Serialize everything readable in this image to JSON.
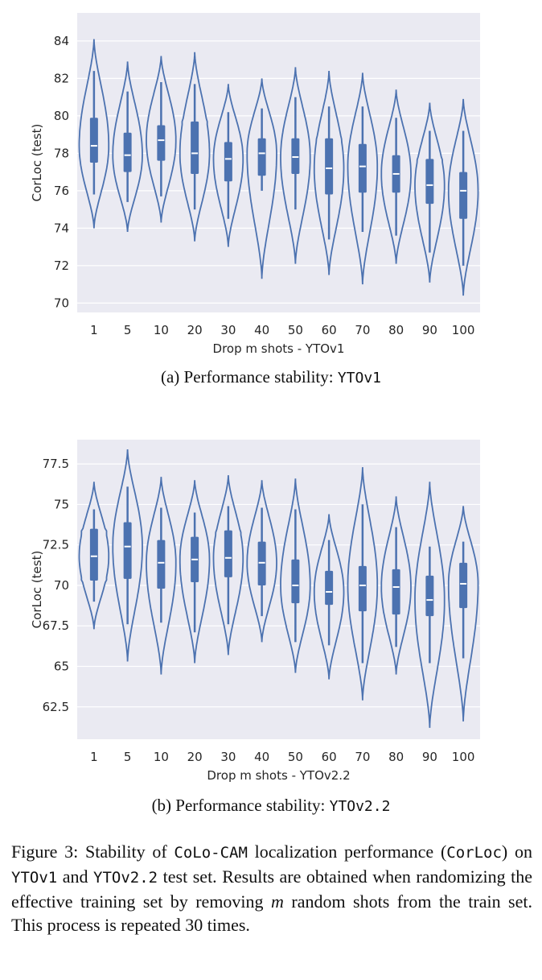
{
  "chart_data": [
    {
      "type": "violin",
      "categories": [
        "1",
        "5",
        "10",
        "20",
        "30",
        "40",
        "50",
        "60",
        "70",
        "80",
        "90",
        "100"
      ],
      "ylabel": "CorLoc (test)",
      "xlabel": "Drop m shots - YTOv1",
      "ylim": [
        69.5,
        85.5
      ],
      "yticks": [
        70,
        72,
        74,
        76,
        78,
        80,
        82,
        84
      ],
      "grid": true,
      "color": "#4c72b0",
      "background": "#eaeaf2",
      "series": [
        {
          "min": 74.0,
          "q1": 77.5,
          "median": 78.4,
          "q3": 79.9,
          "max": 84.1,
          "wlo": 75.8,
          "whi": 82.4
        },
        {
          "min": 73.8,
          "q1": 77.0,
          "median": 77.9,
          "q3": 79.1,
          "max": 82.9,
          "wlo": 75.4,
          "whi": 81.3
        },
        {
          "min": 74.3,
          "q1": 77.6,
          "median": 78.7,
          "q3": 79.5,
          "max": 83.2,
          "wlo": 75.7,
          "whi": 81.8
        },
        {
          "min": 73.3,
          "q1": 76.9,
          "median": 78.0,
          "q3": 79.7,
          "max": 83.4,
          "wlo": 75.0,
          "whi": 81.7
        },
        {
          "min": 73.0,
          "q1": 76.5,
          "median": 77.7,
          "q3": 78.6,
          "max": 81.7,
          "wlo": 74.5,
          "whi": 80.2
        },
        {
          "min": 71.3,
          "q1": 76.8,
          "median": 78.0,
          "q3": 78.8,
          "max": 82.0,
          "wlo": 76.0,
          "whi": 80.4
        },
        {
          "min": 72.1,
          "q1": 76.9,
          "median": 77.8,
          "q3": 78.8,
          "max": 82.6,
          "wlo": 75.0,
          "whi": 81.0
        },
        {
          "min": 71.5,
          "q1": 75.8,
          "median": 77.2,
          "q3": 78.8,
          "max": 82.4,
          "wlo": 73.4,
          "whi": 80.5
        },
        {
          "min": 71.0,
          "q1": 75.9,
          "median": 77.3,
          "q3": 78.5,
          "max": 82.3,
          "wlo": 73.8,
          "whi": 80.5
        },
        {
          "min": 72.1,
          "q1": 75.9,
          "median": 76.9,
          "q3": 77.9,
          "max": 81.4,
          "wlo": 73.6,
          "whi": 79.9
        },
        {
          "min": 71.1,
          "q1": 75.3,
          "median": 76.3,
          "q3": 77.7,
          "max": 80.7,
          "wlo": 72.7,
          "whi": 79.2
        },
        {
          "min": 70.4,
          "q1": 74.5,
          "median": 76.0,
          "q3": 77.0,
          "max": 80.9,
          "wlo": 72.0,
          "whi": 79.2
        }
      ]
    },
    {
      "type": "violin",
      "categories": [
        "1",
        "5",
        "10",
        "20",
        "30",
        "40",
        "50",
        "60",
        "70",
        "80",
        "90",
        "100"
      ],
      "ylabel": "CorLoc (test)",
      "xlabel": "Drop m shots - YTOv2.2",
      "ylim": [
        60.5,
        79.0
      ],
      "yticks": [
        62.5,
        65.0,
        67.5,
        70.0,
        72.5,
        75.0,
        77.5
      ],
      "grid": true,
      "color": "#4c72b0",
      "background": "#eaeaf2",
      "series": [
        {
          "min": 67.3,
          "q1": 70.3,
          "median": 71.8,
          "q3": 73.5,
          "max": 76.4,
          "wlo": 69.0,
          "whi": 74.7
        },
        {
          "min": 65.3,
          "q1": 70.4,
          "median": 72.4,
          "q3": 73.9,
          "max": 78.4,
          "wlo": 67.6,
          "whi": 76.1
        },
        {
          "min": 64.5,
          "q1": 69.8,
          "median": 71.4,
          "q3": 72.8,
          "max": 76.7,
          "wlo": 67.7,
          "whi": 74.8
        },
        {
          "min": 65.2,
          "q1": 70.2,
          "median": 71.6,
          "q3": 73.0,
          "max": 76.5,
          "wlo": 67.1,
          "whi": 74.5
        },
        {
          "min": 65.7,
          "q1": 70.5,
          "median": 71.7,
          "q3": 73.4,
          "max": 76.8,
          "wlo": 67.6,
          "whi": 74.9
        },
        {
          "min": 66.5,
          "q1": 70.0,
          "median": 71.4,
          "q3": 72.7,
          "max": 76.5,
          "wlo": 68.1,
          "whi": 74.8
        },
        {
          "min": 64.6,
          "q1": 68.9,
          "median": 70.0,
          "q3": 71.6,
          "max": 76.6,
          "wlo": 66.5,
          "whi": 74.7
        },
        {
          "min": 64.2,
          "q1": 68.8,
          "median": 69.6,
          "q3": 70.9,
          "max": 74.4,
          "wlo": 66.3,
          "whi": 72.8
        },
        {
          "min": 62.9,
          "q1": 68.4,
          "median": 70.0,
          "q3": 71.2,
          "max": 77.3,
          "wlo": 65.2,
          "whi": 75.0
        },
        {
          "min": 64.5,
          "q1": 68.2,
          "median": 69.9,
          "q3": 71.0,
          "max": 75.5,
          "wlo": 66.2,
          "whi": 73.6
        },
        {
          "min": 61.2,
          "q1": 68.1,
          "median": 69.1,
          "q3": 70.6,
          "max": 76.4,
          "wlo": 65.2,
          "whi": 72.4
        },
        {
          "min": 61.6,
          "q1": 68.6,
          "median": 70.1,
          "q3": 71.4,
          "max": 74.9,
          "wlo": 65.5,
          "whi": 72.7
        }
      ]
    }
  ],
  "captions": {
    "a_prefix": "(a) Performance stability: ",
    "a_code": "YTOv1",
    "b_prefix": "(b) Performance stability: ",
    "b_code": "YTOv2.2"
  },
  "figure_caption": {
    "p1": "Figure 3: Stability of ",
    "method": "CoLo-CAM",
    "p2": " localization performance (",
    "metric": "CorLoc",
    "p3": ") on ",
    "ds1": "YTOv1",
    "p4": " and ",
    "ds2": "YTOv2.2",
    "p5": " test set. Results are obtained when randomizing the effective training set by removing ",
    "var": "m",
    "p6": " random shots from the train set. This process is repeated 30 times."
  }
}
